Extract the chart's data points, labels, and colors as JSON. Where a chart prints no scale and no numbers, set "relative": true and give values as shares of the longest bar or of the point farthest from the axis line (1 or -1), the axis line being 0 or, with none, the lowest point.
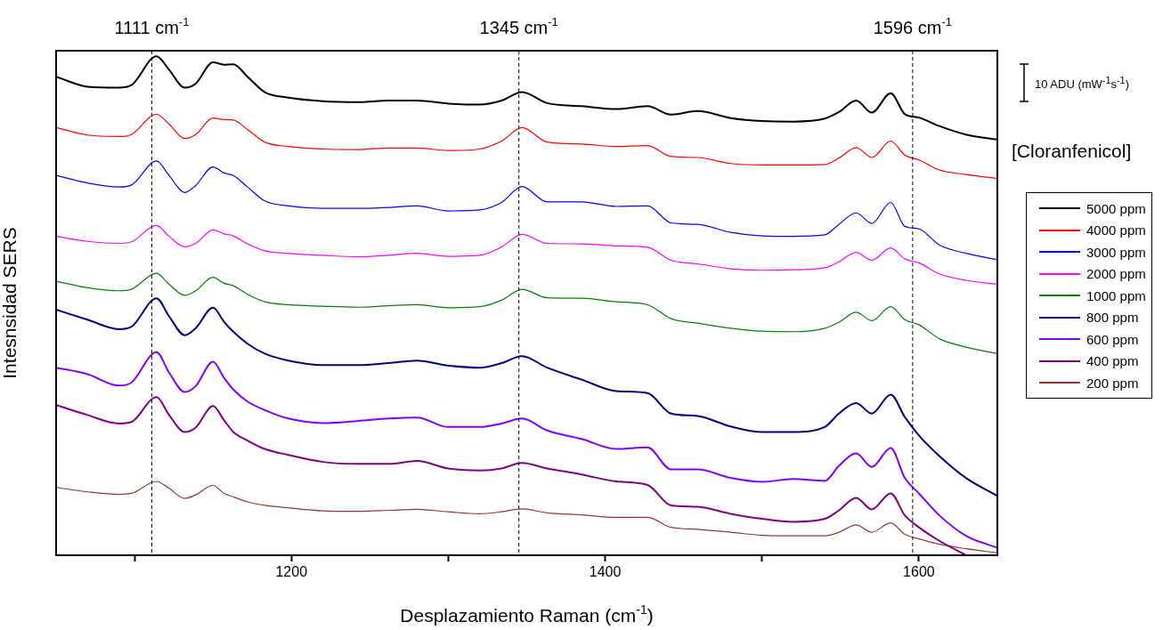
{
  "chart_data": {
    "type": "line",
    "relative": true,
    "xlabel": "Desplazamiento Raman (cm$^{-1}$)",
    "ylabel": "Intesnsidad SERS",
    "legend_title": "[Cloranfenicol]",
    "legend": "right",
    "marker": "none",
    "line_style": "solid",
    "annotations": [
      "10 ADU (mW$^{-1}$s$^{-1}$)"
    ],
    "xlim": [
      1050,
      1650
    ],
    "xticks": [
      {
        "value": 1100,
        "label": null
      },
      1200,
      {
        "value": 1300,
        "label": null
      },
      1400,
      {
        "value": 1500,
        "label": null
      },
      1600
    ],
    "ref_lines": [
      {
        "axis": "x",
        "value": 1111,
        "label": "1111 cm$^{-1}$",
        "color": "#000000",
        "line_style": "dashed"
      },
      {
        "axis": "x",
        "value": 1345,
        "label": "1345 cm$^{-1}$",
        "color": "#000000",
        "line_style": "dashed"
      },
      {
        "axis": "x",
        "value": 1596,
        "label": "1596 cm$^{-1}$",
        "color": "#000000",
        "line_style": "dashed"
      }
    ],
    "x": [
      1050,
      1070,
      1090,
      1098,
      1114,
      1122,
      1132,
      1139,
      1150,
      1157,
      1163,
      1172,
      1183,
      1198,
      1220,
      1242,
      1262,
      1280,
      1300,
      1320,
      1334,
      1347,
      1363,
      1385,
      1407,
      1427,
      1442,
      1459,
      1480,
      1500,
      1520,
      1540,
      1549,
      1560,
      1570,
      1582,
      1591,
      1600,
      1613,
      1630,
      1650
    ],
    "series": [
      {
        "name": "5000 ppm",
        "color": "#000000",
        "values": [
          0.959,
          0.939,
          0.937,
          0.942,
          1,
          0.973,
          0.937,
          0.945,
          0.988,
          0.983,
          0.984,
          0.959,
          0.928,
          0.917,
          0.91,
          0.908,
          0.911,
          0.911,
          0.905,
          0.903,
          0.911,
          0.928,
          0.906,
          0.9,
          0.894,
          0.9,
          0.883,
          0.89,
          0.876,
          0.87,
          0.869,
          0.875,
          0.888,
          0.911,
          0.887,
          0.926,
          0.884,
          0.877,
          0.86,
          0.843,
          0.833
        ]
      },
      {
        "name": "4000 ppm",
        "color": "#ff0000",
        "values": [
          0.857,
          0.842,
          0.839,
          0.843,
          0.884,
          0.864,
          0.835,
          0.843,
          0.876,
          0.873,
          0.872,
          0.853,
          0.828,
          0.819,
          0.814,
          0.813,
          0.816,
          0.816,
          0.811,
          0.814,
          0.83,
          0.857,
          0.828,
          0.824,
          0.819,
          0.821,
          0.799,
          0.797,
          0.785,
          0.782,
          0.782,
          0.783,
          0.796,
          0.817,
          0.797,
          0.83,
          0.802,
          0.792,
          0.772,
          0.763,
          0.755
        ]
      },
      {
        "name": "3000 ppm",
        "color": "#0000ff",
        "values": [
          0.761,
          0.746,
          0.738,
          0.742,
          0.79,
          0.761,
          0.727,
          0.741,
          0.778,
          0.766,
          0.761,
          0.738,
          0.71,
          0.7,
          0.695,
          0.695,
          0.697,
          0.7,
          0.69,
          0.692,
          0.707,
          0.739,
          0.708,
          0.708,
          0.699,
          0.7,
          0.666,
          0.663,
          0.647,
          0.64,
          0.639,
          0.642,
          0.663,
          0.686,
          0.665,
          0.707,
          0.659,
          0.654,
          0.622,
          0.605,
          0.592
        ]
      },
      {
        "name": "2000 ppm",
        "color": "#ff00ff",
        "values": [
          0.639,
          0.629,
          0.625,
          0.628,
          0.661,
          0.639,
          0.618,
          0.625,
          0.652,
          0.644,
          0.64,
          0.624,
          0.61,
          0.605,
          0.601,
          0.598,
          0.601,
          0.605,
          0.599,
          0.601,
          0.618,
          0.643,
          0.625,
          0.624,
          0.62,
          0.617,
          0.591,
          0.584,
          0.574,
          0.571,
          0.572,
          0.576,
          0.588,
          0.607,
          0.591,
          0.616,
          0.594,
          0.586,
          0.564,
          0.551,
          0.543
        ]
      },
      {
        "name": "1000 ppm",
        "color": "#008000",
        "values": [
          0.549,
          0.536,
          0.53,
          0.533,
          0.565,
          0.543,
          0.521,
          0.53,
          0.557,
          0.545,
          0.54,
          0.523,
          0.508,
          0.502,
          0.499,
          0.497,
          0.5,
          0.502,
          0.496,
          0.498,
          0.511,
          0.533,
          0.516,
          0.515,
          0.508,
          0.502,
          0.474,
          0.465,
          0.455,
          0.449,
          0.448,
          0.455,
          0.467,
          0.487,
          0.47,
          0.498,
          0.472,
          0.462,
          0.434,
          0.417,
          0.404
        ]
      },
      {
        "name": "800 ppm",
        "color": "#000080",
        "values": [
          0.492,
          0.472,
          0.453,
          0.458,
          0.515,
          0.479,
          0.441,
          0.455,
          0.496,
          0.468,
          0.448,
          0.424,
          0.404,
          0.39,
          0.381,
          0.381,
          0.385,
          0.39,
          0.38,
          0.376,
          0.385,
          0.399,
          0.376,
          0.352,
          0.329,
          0.325,
          0.284,
          0.279,
          0.258,
          0.247,
          0.247,
          0.257,
          0.284,
          0.305,
          0.284,
          0.322,
          0.277,
          0.24,
          0.199,
          0.155,
          0.119
        ]
      },
      {
        "name": "600 ppm",
        "color": "#8000ff",
        "values": [
          0.376,
          0.363,
          0.34,
          0.346,
          0.407,
          0.366,
          0.327,
          0.339,
          0.388,
          0.356,
          0.332,
          0.308,
          0.291,
          0.274,
          0.265,
          0.269,
          0.274,
          0.276,
          0.257,
          0.257,
          0.264,
          0.274,
          0.25,
          0.233,
          0.213,
          0.216,
          0.172,
          0.172,
          0.155,
          0.147,
          0.153,
          0.149,
          0.179,
          0.204,
          0.177,
          0.215,
          0.155,
          0.124,
          0.08,
          0.039,
          0.015
        ]
      },
      {
        "name": "400 ppm",
        "color": "#800080",
        "values": [
          0.301,
          0.281,
          0.264,
          0.267,
          0.317,
          0.281,
          0.247,
          0.256,
          0.299,
          0.271,
          0.247,
          0.23,
          0.213,
          0.201,
          0.187,
          0.183,
          0.183,
          0.189,
          0.174,
          0.17,
          0.174,
          0.185,
          0.174,
          0.162,
          0.148,
          0.141,
          0.1,
          0.097,
          0.083,
          0.073,
          0.067,
          0.073,
          0.09,
          0.115,
          0.092,
          0.124,
          0.08,
          0.056,
          0.029,
          0,
          null
        ]
      },
      {
        "name": "200 ppm",
        "color": "#993333",
        "values": [
          0.136,
          0.127,
          0.122,
          0.124,
          0.148,
          0.134,
          0.114,
          0.121,
          0.14,
          0.124,
          0.117,
          0.107,
          0.1,
          0.095,
          0.089,
          0.088,
          0.09,
          0.092,
          0.087,
          0.083,
          0.087,
          0.093,
          0.085,
          0.081,
          0.076,
          0.076,
          0.056,
          0.052,
          0.046,
          0.04,
          0.039,
          0.039,
          0.046,
          0.061,
          0.046,
          0.065,
          0.042,
          0.033,
          0.022,
          0.013,
          0.005
        ]
      }
    ]
  }
}
